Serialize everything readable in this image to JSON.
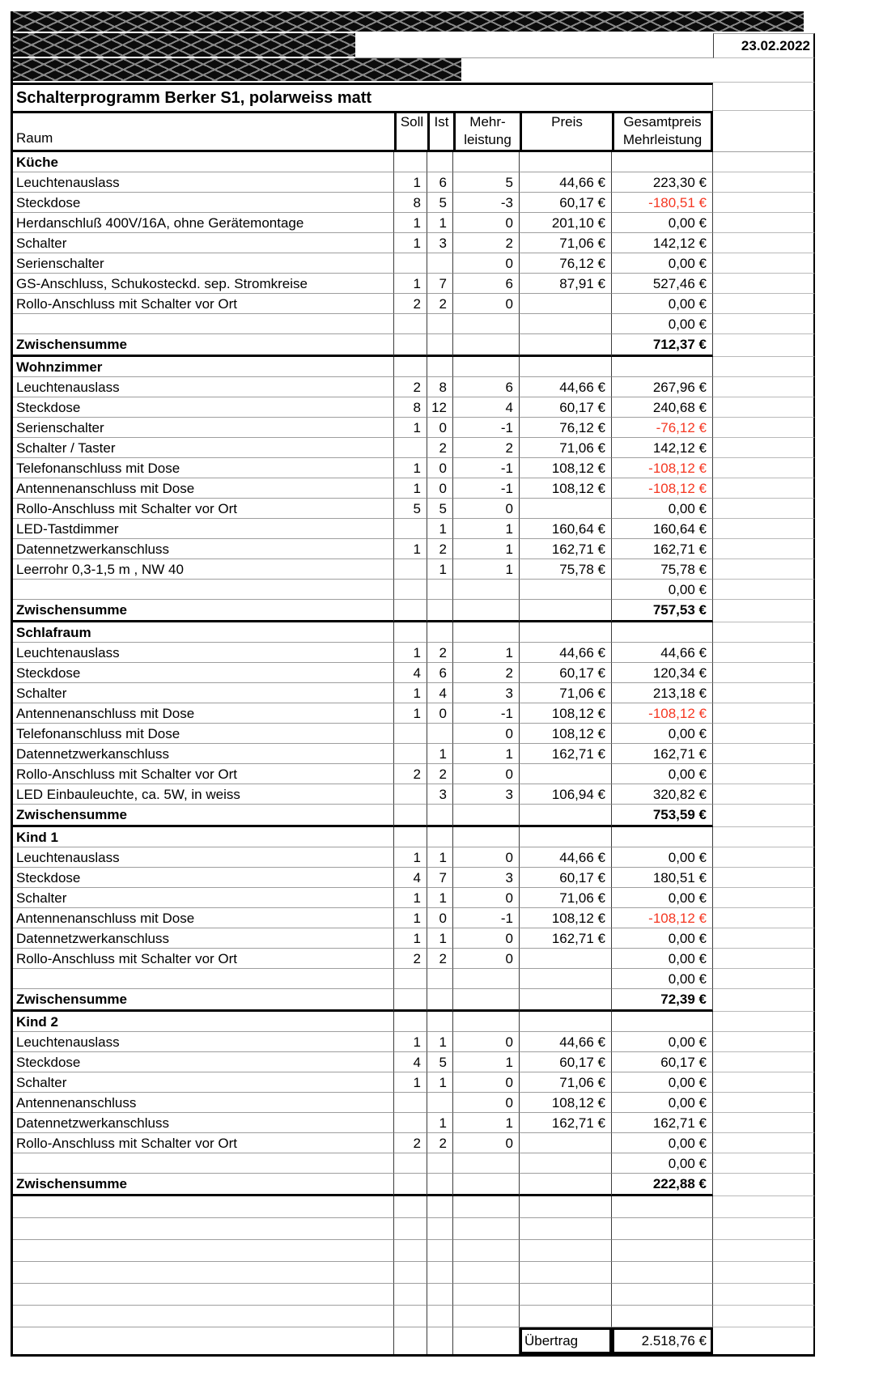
{
  "meta": {
    "date": "23.02.2022"
  },
  "title": "Schalterprogramm Berker S1, polarweiss matt",
  "header": {
    "raum": "Raum",
    "soll": "Soll",
    "ist": "Ist",
    "mehr_line1": "Mehr-",
    "mehr_line2": "leistung",
    "preis": "Preis",
    "gesamt_line1": "Gesamtpreis",
    "gesamt_line2": "Mehrleistung"
  },
  "colors": {
    "negative_value": "#f53722",
    "grid_light": "#9e9e9e",
    "grid_dark": "#3c3c3c",
    "border": "#000000",
    "redaction_bg": "#0b0b0b",
    "redaction_line": "#878787"
  },
  "table": {
    "sections": [
      {
        "name": "Küche",
        "rows": [
          {
            "raum": "Leuchtenauslass",
            "soll": "1",
            "ist": "6",
            "mehr": "5",
            "preis": "44,66 €",
            "gesamt": "223,30 €",
            "negative": false
          },
          {
            "raum": "Steckdose",
            "soll": "8",
            "ist": "5",
            "mehr": "-3",
            "preis": "60,17 €",
            "gesamt": "-180,51 €",
            "negative": true
          },
          {
            "raum": "Herdanschluß 400V/16A, ohne Gerätemontage",
            "soll": "1",
            "ist": "1",
            "mehr": "0",
            "preis": "201,10 €",
            "gesamt": "0,00 €",
            "negative": false
          },
          {
            "raum": "Schalter",
            "soll": "1",
            "ist": "3",
            "mehr": "2",
            "preis": "71,06 €",
            "gesamt": "142,12 €",
            "negative": false
          },
          {
            "raum": "Serienschalter",
            "soll": "",
            "ist": "",
            "mehr": "0",
            "preis": "76,12 €",
            "gesamt": "0,00 €",
            "negative": false
          },
          {
            "raum": "GS-Anschluss, Schukosteckd. sep. Stromkreise",
            "soll": "1",
            "ist": "7",
            "mehr": "6",
            "preis": "87,91 €",
            "gesamt": "527,46 €",
            "negative": false
          },
          {
            "raum": "Rollo-Anschluss mit Schalter vor Ort",
            "soll": "2",
            "ist": "2",
            "mehr": "0",
            "preis": "",
            "gesamt": "0,00 €",
            "negative": false
          },
          {
            "raum": "",
            "soll": "",
            "ist": "",
            "mehr": "",
            "preis": "",
            "gesamt": "0,00 €",
            "negative": false
          }
        ],
        "subtotal_label": "Zwischensumme",
        "subtotal": "712,37 €"
      },
      {
        "name": "Wohnzimmer",
        "rows": [
          {
            "raum": "Leuchtenauslass",
            "soll": "2",
            "ist": "8",
            "mehr": "6",
            "preis": "44,66 €",
            "gesamt": "267,96 €",
            "negative": false
          },
          {
            "raum": "Steckdose",
            "soll": "8",
            "ist": "12",
            "mehr": "4",
            "preis": "60,17 €",
            "gesamt": "240,68 €",
            "negative": false
          },
          {
            "raum": "Serienschalter",
            "soll": "1",
            "ist": "0",
            "mehr": "-1",
            "preis": "76,12 €",
            "gesamt": "-76,12 €",
            "negative": true
          },
          {
            "raum": "Schalter / Taster",
            "soll": "",
            "ist": "2",
            "mehr": "2",
            "preis": "71,06 €",
            "gesamt": "142,12 €",
            "negative": false
          },
          {
            "raum": "Telefonanschluss mit Dose",
            "soll": "1",
            "ist": "0",
            "mehr": "-1",
            "preis": "108,12 €",
            "gesamt": "-108,12 €",
            "negative": true
          },
          {
            "raum": "Antennenanschluss mit Dose",
            "soll": "1",
            "ist": "0",
            "mehr": "-1",
            "preis": "108,12 €",
            "gesamt": "-108,12 €",
            "negative": true
          },
          {
            "raum": "Rollo-Anschluss mit Schalter vor Ort",
            "soll": "5",
            "ist": "5",
            "mehr": "0",
            "preis": "",
            "gesamt": "0,00 €",
            "negative": false
          },
          {
            "raum": "LED-Tastdimmer",
            "soll": "",
            "ist": "1",
            "mehr": "1",
            "preis": "160,64 €",
            "gesamt": "160,64 €",
            "negative": false
          },
          {
            "raum": "Datennetzwerkanschluss",
            "soll": "1",
            "ist": "2",
            "mehr": "1",
            "preis": "162,71 €",
            "gesamt": "162,71 €",
            "negative": false
          },
          {
            "raum": "Leerrohr 0,3-1,5 m , NW 40",
            "soll": "",
            "ist": "1",
            "mehr": "1",
            "preis": "75,78 €",
            "gesamt": "75,78 €",
            "negative": false
          },
          {
            "raum": "",
            "soll": "",
            "ist": "",
            "mehr": "",
            "preis": "",
            "gesamt": "0,00 €",
            "negative": false
          }
        ],
        "subtotal_label": "Zwischensumme",
        "subtotal": "757,53 €"
      },
      {
        "name": "Schlafraum",
        "rows": [
          {
            "raum": "Leuchtenauslass",
            "soll": "1",
            "ist": "2",
            "mehr": "1",
            "preis": "44,66 €",
            "gesamt": "44,66 €",
            "negative": false
          },
          {
            "raum": "Steckdose",
            "soll": "4",
            "ist": "6",
            "mehr": "2",
            "preis": "60,17 €",
            "gesamt": "120,34 €",
            "negative": false
          },
          {
            "raum": "Schalter",
            "soll": "1",
            "ist": "4",
            "mehr": "3",
            "preis": "71,06 €",
            "gesamt": "213,18 €",
            "negative": false
          },
          {
            "raum": "Antennenanschluss mit Dose",
            "soll": "1",
            "ist": "0",
            "mehr": "-1",
            "preis": "108,12 €",
            "gesamt": "-108,12 €",
            "negative": true
          },
          {
            "raum": "Telefonanschluss mit Dose",
            "soll": "",
            "ist": "",
            "mehr": "0",
            "preis": "108,12 €",
            "gesamt": "0,00 €",
            "negative": false
          },
          {
            "raum": "Datennetzwerkanschluss",
            "soll": "",
            "ist": "1",
            "mehr": "1",
            "preis": "162,71 €",
            "gesamt": "162,71 €",
            "negative": false
          },
          {
            "raum": "Rollo-Anschluss mit Schalter vor Ort",
            "soll": "2",
            "ist": "2",
            "mehr": "0",
            "preis": "",
            "gesamt": "0,00 €",
            "negative": false
          },
          {
            "raum": "LED Einbauleuchte, ca. 5W, in weiss",
            "soll": "",
            "ist": "3",
            "mehr": "3",
            "preis": "106,94 €",
            "gesamt": "320,82 €",
            "negative": false
          }
        ],
        "subtotal_label": "Zwischensumme",
        "subtotal": "753,59 €"
      },
      {
        "name": "Kind 1",
        "rows": [
          {
            "raum": "Leuchtenauslass",
            "soll": "1",
            "ist": "1",
            "mehr": "0",
            "preis": "44,66 €",
            "gesamt": "0,00 €",
            "negative": false
          },
          {
            "raum": "Steckdose",
            "soll": "4",
            "ist": "7",
            "mehr": "3",
            "preis": "60,17 €",
            "gesamt": "180,51 €",
            "negative": false
          },
          {
            "raum": "Schalter",
            "soll": "1",
            "ist": "1",
            "mehr": "0",
            "preis": "71,06 €",
            "gesamt": "0,00 €",
            "negative": false
          },
          {
            "raum": "Antennenanschluss mit Dose",
            "soll": "1",
            "ist": "0",
            "mehr": "-1",
            "preis": "108,12 €",
            "gesamt": "-108,12 €",
            "negative": true
          },
          {
            "raum": "Datennetzwerkanschluss",
            "soll": "1",
            "ist": "1",
            "mehr": "0",
            "preis": "162,71 €",
            "gesamt": "0,00 €",
            "negative": false
          },
          {
            "raum": "Rollo-Anschluss mit Schalter vor Ort",
            "soll": "2",
            "ist": "2",
            "mehr": "0",
            "preis": "",
            "gesamt": "0,00 €",
            "negative": false
          },
          {
            "raum": "",
            "soll": "",
            "ist": "",
            "mehr": "",
            "preis": "",
            "gesamt": "0,00 €",
            "negative": false
          }
        ],
        "subtotal_label": "Zwischensumme",
        "subtotal": "72,39 €"
      },
      {
        "name": "Kind 2",
        "rows": [
          {
            "raum": "Leuchtenauslass",
            "soll": "1",
            "ist": "1",
            "mehr": "0",
            "preis": "44,66 €",
            "gesamt": "0,00 €",
            "negative": false
          },
          {
            "raum": "Steckdose",
            "soll": "4",
            "ist": "5",
            "mehr": "1",
            "preis": "60,17 €",
            "gesamt": "60,17 €",
            "negative": false
          },
          {
            "raum": "Schalter",
            "soll": "1",
            "ist": "1",
            "mehr": "0",
            "preis": "71,06 €",
            "gesamt": "0,00 €",
            "negative": false
          },
          {
            "raum": "Antennenanschluss",
            "soll": "",
            "ist": "",
            "mehr": "0",
            "preis": "108,12 €",
            "gesamt": "0,00 €",
            "negative": false
          },
          {
            "raum": "Datennetzwerkanschluss",
            "soll": "",
            "ist": "1",
            "mehr": "1",
            "preis": "162,71 €",
            "gesamt": "162,71 €",
            "negative": false
          },
          {
            "raum": "Rollo-Anschluss mit Schalter vor Ort",
            "soll": "2",
            "ist": "2",
            "mehr": "0",
            "preis": "",
            "gesamt": "0,00 €",
            "negative": false
          },
          {
            "raum": "",
            "soll": "",
            "ist": "",
            "mehr": "",
            "preis": "",
            "gesamt": "0,00 €",
            "negative": false
          }
        ],
        "subtotal_label": "Zwischensumme",
        "subtotal": "222,88 €"
      }
    ]
  },
  "footer": {
    "empty_rows": 6,
    "uebertrag_label": "Übertrag",
    "uebertrag_value": "2.518,76 €"
  }
}
